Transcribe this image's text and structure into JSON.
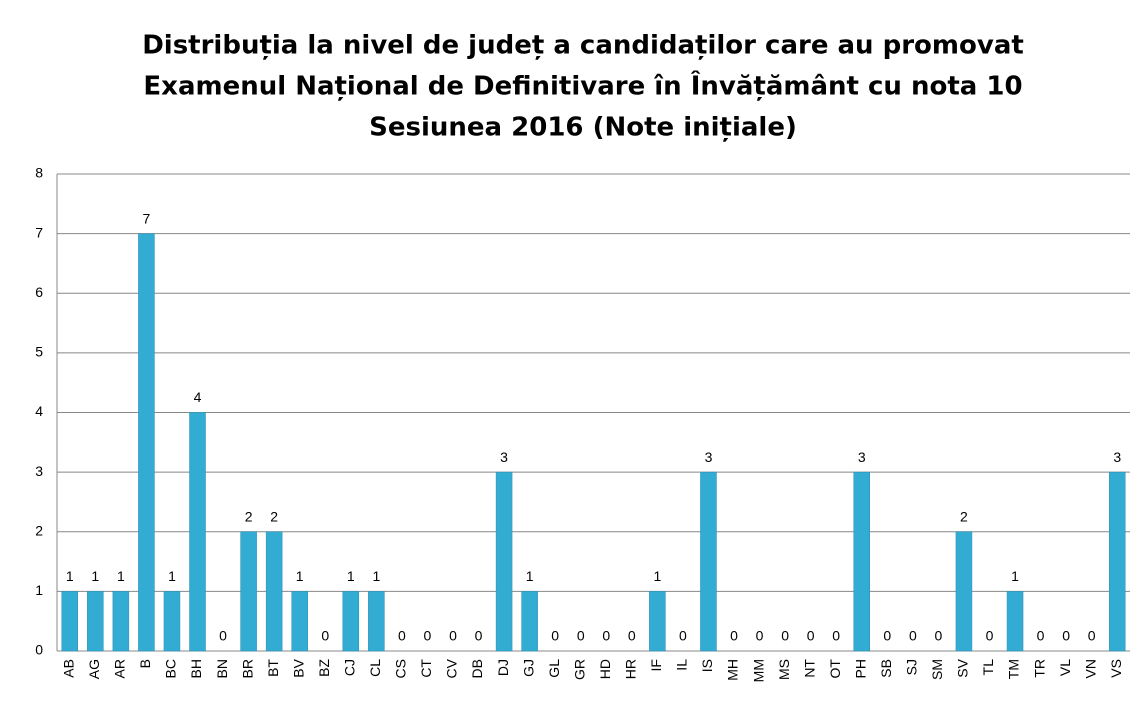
{
  "chart_data": {
    "type": "bar",
    "title": [
      "Distribuția la nivel de județ a candidaților care au promovat",
      "Examenul Național de Definitivare în Învățământ cu nota 10",
      "Sesiunea 2016 (Note inițiale)"
    ],
    "categories": [
      "AB",
      "AG",
      "AR",
      "B",
      "BC",
      "BH",
      "BN",
      "BR",
      "BT",
      "BV",
      "BZ",
      "CJ",
      "CL",
      "CS",
      "CT",
      "CV",
      "DB",
      "DJ",
      "GJ",
      "GL",
      "GR",
      "HD",
      "HR",
      "IF",
      "IL",
      "IS",
      "MH",
      "MM",
      "MS",
      "NT",
      "OT",
      "PH",
      "SB",
      "SJ",
      "SM",
      "SV",
      "TL",
      "TM",
      "TR",
      "VL",
      "VN",
      "VS"
    ],
    "values": [
      1,
      1,
      1,
      7,
      1,
      4,
      0,
      2,
      2,
      1,
      0,
      1,
      1,
      0,
      0,
      0,
      0,
      3,
      1,
      0,
      0,
      0,
      0,
      1,
      0,
      3,
      0,
      0,
      0,
      0,
      0,
      3,
      0,
      0,
      0,
      2,
      0,
      1,
      0,
      0,
      0,
      3
    ],
    "color": "#33acd3",
    "ylim": [
      0,
      8
    ],
    "yticks": [
      0,
      1,
      2,
      3,
      4,
      5,
      6,
      7,
      8
    ],
    "grid": true
  }
}
